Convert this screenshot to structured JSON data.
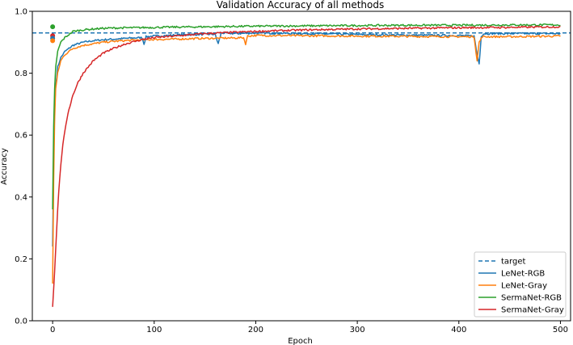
{
  "chart_data": {
    "type": "line",
    "title": "Validation Accuracy of all methods",
    "xlabel": "Epoch",
    "ylabel": "Accuracy",
    "xlim": [
      -20,
      510
    ],
    "ylim": [
      0.0,
      1.0
    ],
    "xticks": [
      0,
      100,
      200,
      300,
      400,
      500
    ],
    "yticks": [
      0.0,
      0.2,
      0.4,
      0.6,
      0.8,
      1.0
    ],
    "grid": false,
    "legend_position": "lower-right",
    "target": {
      "name": "target",
      "value": 0.93,
      "color": "#1f77b4",
      "style": "dashed"
    },
    "series": [
      {
        "name": "LeNet-RGB",
        "color": "#1f77b4",
        "x": [
          0,
          1,
          2,
          3,
          5,
          8,
          12,
          20,
          30,
          40,
          50,
          60,
          70,
          80,
          88,
          90,
          92,
          100,
          120,
          140,
          160,
          163,
          166,
          180,
          200,
          250,
          300,
          350,
          400,
          415,
          418,
          420,
          422,
          425,
          450,
          500
        ],
        "values": [
          0.24,
          0.52,
          0.68,
          0.76,
          0.82,
          0.85,
          0.87,
          0.89,
          0.9,
          0.905,
          0.908,
          0.91,
          0.912,
          0.914,
          0.915,
          0.895,
          0.918,
          0.92,
          0.923,
          0.925,
          0.926,
          0.895,
          0.93,
          0.928,
          0.93,
          0.928,
          0.925,
          0.923,
          0.922,
          0.92,
          0.86,
          0.83,
          0.92,
          0.928,
          0.928,
          0.928
        ]
      },
      {
        "name": "LeNet-Gray",
        "color": "#ff7f0e",
        "x": [
          0,
          1,
          2,
          3,
          5,
          8,
          12,
          20,
          30,
          40,
          50,
          60,
          70,
          80,
          90,
          100,
          120,
          140,
          160,
          180,
          188,
          190,
          192,
          200,
          250,
          300,
          350,
          400,
          415,
          418,
          420,
          423,
          450,
          500
        ],
        "values": [
          0.12,
          0.45,
          0.65,
          0.75,
          0.8,
          0.84,
          0.86,
          0.88,
          0.89,
          0.895,
          0.9,
          0.903,
          0.905,
          0.907,
          0.908,
          0.909,
          0.91,
          0.912,
          0.913,
          0.914,
          0.915,
          0.895,
          0.92,
          0.922,
          0.921,
          0.92,
          0.919,
          0.918,
          0.918,
          0.84,
          0.9,
          0.918,
          0.918,
          0.92
        ]
      },
      {
        "name": "SermaNet-RGB",
        "color": "#2ca02c",
        "x": [
          0,
          1,
          2,
          3,
          5,
          8,
          12,
          16,
          20,
          30,
          40,
          50,
          60,
          80,
          100,
          120,
          150,
          200,
          250,
          300,
          350,
          400,
          450,
          500
        ],
        "values": [
          0.36,
          0.63,
          0.75,
          0.82,
          0.87,
          0.9,
          0.915,
          0.925,
          0.935,
          0.94,
          0.943,
          0.945,
          0.946,
          0.947,
          0.948,
          0.949,
          0.95,
          0.952,
          0.953,
          0.954,
          0.955,
          0.955,
          0.956,
          0.956
        ]
      },
      {
        "name": "SermaNet-Gray",
        "color": "#d62728",
        "x": [
          0,
          2,
          4,
          6,
          8,
          10,
          15,
          20,
          25,
          30,
          40,
          50,
          60,
          70,
          80,
          90,
          100,
          120,
          150,
          200,
          250,
          300,
          350,
          400,
          450,
          500
        ],
        "values": [
          0.045,
          0.16,
          0.3,
          0.42,
          0.5,
          0.57,
          0.67,
          0.73,
          0.77,
          0.8,
          0.84,
          0.865,
          0.88,
          0.893,
          0.902,
          0.91,
          0.915,
          0.92,
          0.928,
          0.935,
          0.94,
          0.943,
          0.945,
          0.947,
          0.948,
          0.95
        ]
      }
    ],
    "markers_at_epoch0": [
      {
        "series": "SermaNet-RGB",
        "x": 0,
        "y": 0.95,
        "color": "#2ca02c"
      },
      {
        "series": "SermaNet-Gray",
        "x": 0,
        "y": 0.921,
        "color": "#d62728"
      },
      {
        "series": "LeNet-RGB",
        "x": 0,
        "y": 0.913,
        "color": "#1f77b4"
      },
      {
        "series": "LeNet-Gray",
        "x": 0,
        "y": 0.905,
        "color": "#ff7f0e"
      }
    ]
  }
}
